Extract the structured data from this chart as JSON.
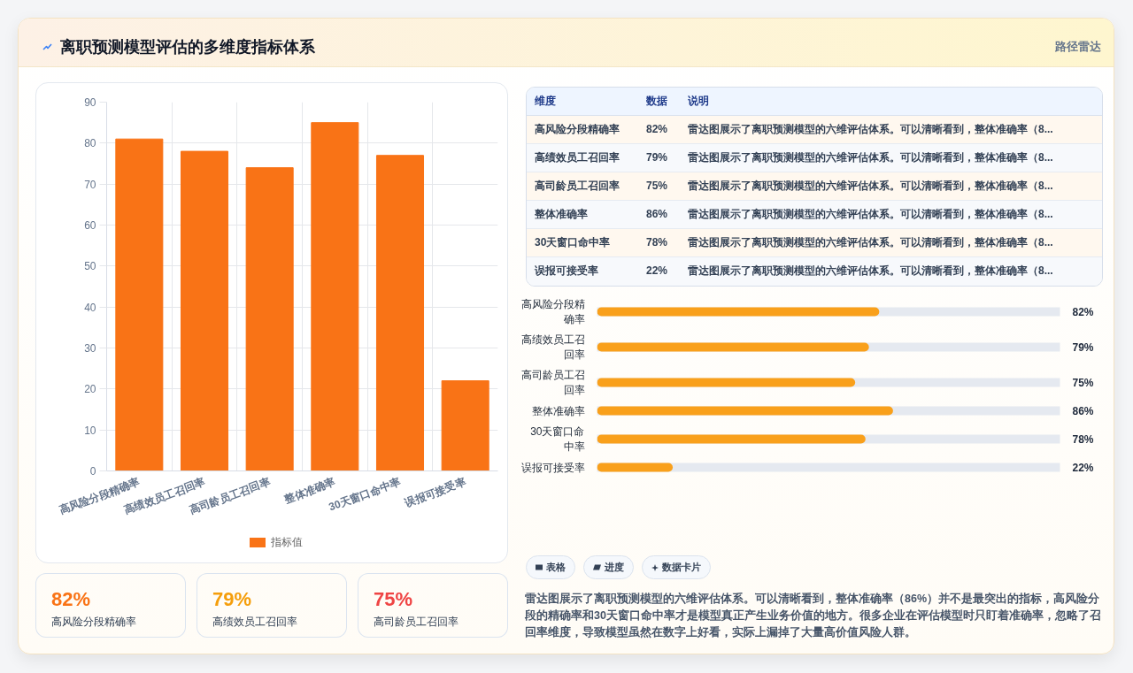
{
  "chart_data": [
    {
      "type": "other",
      "title": "离职预测模型评估的多维度指标体系",
      "annotations": [
        "路径雷达"
      ]
    },
    {
      "type": "bar",
      "categories": [
        "高风险分段精确率",
        "高绩效员工召回率",
        "高司龄员工召回率",
        "整体准确率",
        "30天窗口命中率",
        "误报可接受率"
      ],
      "series": [
        {
          "name": "指标值",
          "color": "#f97316",
          "values": [
            81,
            78,
            74,
            85,
            77,
            22
          ]
        }
      ],
      "ylim": [
        0,
        90
      ],
      "yticks": [
        0,
        10,
        20,
        30,
        40,
        50,
        60,
        70,
        80,
        90
      ],
      "grid": true,
      "legend": "bottom"
    },
    {
      "type": "other",
      "categories": [
        "高风险分段精确率",
        "高绩效员工召回率",
        "高司龄员工召回率",
        "整体准确率",
        "30天窗口命中率",
        "误报可接受率"
      ],
      "values": [
        82,
        79,
        75,
        86,
        78,
        22
      ],
      "value_labels": [
        "82%",
        "79%",
        "75%",
        "86%",
        "78%",
        "22%"
      ],
      "annotations": [
        "维度",
        "数据",
        "说明",
        "雷达图展示了离职预测模型的六维评估体系。可以清晰看到，整体准确率（8...",
        "雷达图展示了离职预测模型的六维评估体系。可以清晰看到，整体准确率（8...",
        "雷达图展示了离职预测模型的六维评估体系。可以清晰看到，整体准确率（8...",
        "雷达图展示了离职预测模型的六维评估体系。可以清晰看到，整体准确率（8...",
        "雷达图展示了离职预测模型的六维评估体系。可以清晰看到，整体准确率（8...",
        "雷达图展示了离职预测模型的六维评估体系。可以清晰看到，整体准确率（8..."
      ]
    },
    {
      "type": "bar",
      "orientation": "horizontal",
      "categories": [
        "高风险分段精确率",
        "高绩效员工召回率",
        "高司龄员工召回率",
        "整体准确率",
        "30天窗口命中率",
        "误报可接受率"
      ],
      "values": [
        82,
        79,
        75,
        86,
        78,
        22
      ],
      "value_labels": [
        "82%",
        "79%",
        "75%",
        "86%",
        "78%",
        "22%"
      ],
      "color": "#f9a01b",
      "xlim": [
        0,
        134.5
      ],
      "tick_labels": "y",
      "grid": "y"
    },
    {
      "type": "other",
      "categories": [
        "高风险分段精确率",
        "高绩效员工召回率",
        "高司龄员工召回率"
      ],
      "values": [
        82,
        79,
        75
      ],
      "value_labels": [
        "82%",
        "79%",
        "75%"
      ],
      "colors": [
        "#f97316",
        "#f59e0b",
        "#ef4444"
      ]
    },
    {
      "type": "other",
      "categories": [
        "表格",
        "进度",
        "数据卡片"
      ]
    },
    {
      "type": "other",
      "annotations": [
        "雷达图展示了离职预测模型的六维评估体系。可以清晰看到，整体准确率（86%）并不是最突出的指标，高风险分段的精确率和30天窗口命中率才是模型真正产生业务价值的地方。很多企业在评估模型时只盯着准确率，忽略了召回率维度，导致模型虽然在数字上好看，实际上漏掉了大量高价值风险人群。"
      ]
    }
  ]
}
